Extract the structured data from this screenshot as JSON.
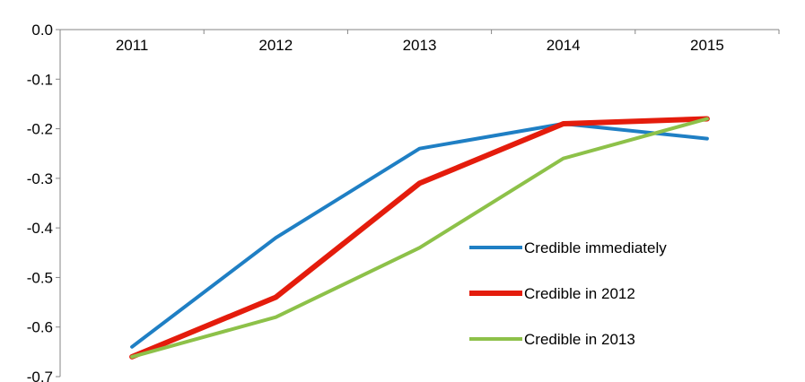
{
  "chart_data": {
    "type": "line",
    "title": "",
    "xlabel": "",
    "ylabel": "",
    "categories": [
      "2011",
      "2012",
      "2013",
      "2014",
      "2015"
    ],
    "ylim": [
      -0.7,
      0.0
    ],
    "yticks": [
      "0.0",
      "-0.1",
      "-0.2",
      "-0.3",
      "-0.4",
      "-0.5",
      "-0.6",
      "-0.7"
    ],
    "ytick_values": [
      0.0,
      -0.1,
      -0.2,
      -0.3,
      -0.4,
      -0.5,
      -0.6,
      -0.7
    ],
    "x_axis_position": "top",
    "grid": false,
    "legend_placement": "bottom-right",
    "series": [
      {
        "name": "Credible immediately",
        "color": "#1f7fc4",
        "values": [
          -0.64,
          -0.42,
          -0.24,
          -0.19,
          -0.22
        ]
      },
      {
        "name": "Credible in 2012",
        "color": "#e41c0c",
        "values": [
          -0.66,
          -0.54,
          -0.31,
          -0.19,
          -0.18
        ]
      },
      {
        "name": "Credible in 2013",
        "color": "#8dc149",
        "values": [
          -0.66,
          -0.58,
          -0.44,
          -0.26,
          -0.18
        ]
      }
    ]
  }
}
